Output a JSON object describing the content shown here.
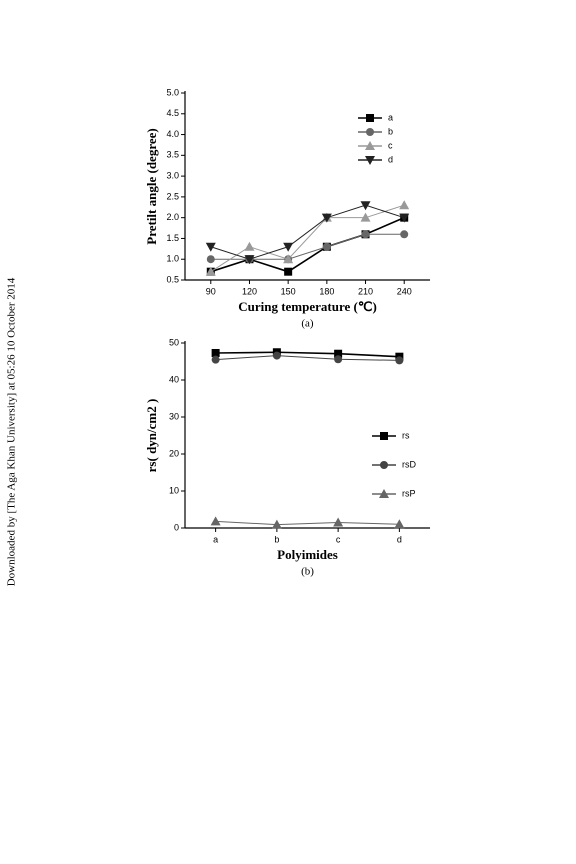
{
  "side_note": "Downloaded by [The Aga Khan University] at 05:26 10 October 2014",
  "chart_data": [
    {
      "type": "line",
      "caption": "(a)",
      "x_label": "Curing temperature (℃)",
      "y_label": "Pretilt angle (degree)",
      "x": [
        90,
        120,
        150,
        180,
        210,
        240
      ],
      "xlim": [
        70,
        260
      ],
      "xticks": [
        90,
        120,
        150,
        180,
        210,
        240
      ],
      "ylim": [
        0.5,
        5
      ],
      "yticks": [
        0.5,
        {
          "value": 1,
          "label": "1.0"
        },
        1.5,
        {
          "value": 2,
          "label": "2.0"
        },
        2.5,
        {
          "value": 3,
          "label": "3.0"
        },
        3.5,
        {
          "value": 4,
          "label": "4.0"
        },
        4.5,
        {
          "value": 5,
          "label": "5.0"
        }
      ],
      "series": [
        {
          "name": "a",
          "color": "#000000",
          "marker": "square",
          "values": [
            0.7,
            1.0,
            0.7,
            1.3,
            1.6,
            2.0
          ]
        },
        {
          "name": "b",
          "color": "#666666",
          "marker": "circle",
          "values": [
            1.0,
            1.0,
            1.0,
            1.3,
            1.6,
            1.6
          ]
        },
        {
          "name": "c",
          "color": "#999999",
          "marker": "triangle-up",
          "values": [
            0.7,
            1.3,
            1.0,
            2.0,
            2.0,
            2.3
          ]
        },
        {
          "name": "d",
          "color": "#222222",
          "marker": "triangle-down",
          "values": [
            1.3,
            1.0,
            1.3,
            2.0,
            2.3,
            2.0
          ]
        }
      ]
    },
    {
      "type": "line",
      "caption": "(b)",
      "x_label": "Polyimides",
      "y_label": "rs( dyn/cm2 )",
      "categories": [
        "a",
        "b",
        "c",
        "d"
      ],
      "ylim": [
        0,
        50
      ],
      "yticks": [
        0,
        10,
        20,
        30,
        40,
        50
      ],
      "series": [
        {
          "name": "rs",
          "color": "#000000",
          "marker": "square",
          "values": [
            47.3,
            47.5,
            47.1,
            46.3
          ]
        },
        {
          "name": "rsD",
          "color": "#444444",
          "marker": "circle",
          "values": [
            45.5,
            46.6,
            45.6,
            45.3
          ]
        },
        {
          "name": "rsP",
          "color": "#666666",
          "marker": "triangle-up",
          "values": [
            1.8,
            0.9,
            1.5,
            1.0
          ]
        }
      ]
    }
  ]
}
